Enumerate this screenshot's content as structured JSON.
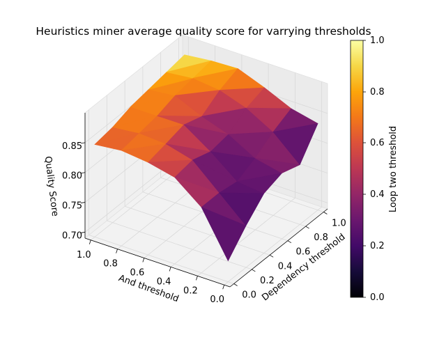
{
  "chart_data": {
    "type": "surface3d",
    "title": "Heuristics miner average quality score for varrying thresholds",
    "xlabel": "Dependency threshold",
    "ylabel": "And threshold",
    "zlabel": "Quality Score",
    "colorbar_label": "Loop two threshold",
    "colormap": "inferno",
    "x_ticks": [
      "0.0",
      "0.2",
      "0.4",
      "0.6",
      "0.8",
      "1.0"
    ],
    "y_ticks": [
      "0.0",
      "0.2",
      "0.4",
      "0.6",
      "0.8",
      "1.0"
    ],
    "z_ticks": [
      "0.70",
      "0.75",
      "0.80",
      "0.85"
    ],
    "colorbar_ticks": [
      "0.0",
      "0.2",
      "0.4",
      "0.6",
      "0.8",
      "1.0"
    ],
    "xlim": [
      0,
      1
    ],
    "ylim": [
      0,
      1
    ],
    "zlim": [
      0.69,
      0.9
    ],
    "grid": true,
    "grid_x": [
      0.0,
      0.2,
      0.4,
      0.6,
      0.8,
      1.0
    ],
    "grid_y": [
      1.0,
      0.8,
      0.6,
      0.4,
      0.2,
      0.0
    ],
    "z_values": [
      [
        0.845,
        0.85,
        0.86,
        0.865,
        0.87,
        0.875
      ],
      [
        0.85,
        0.855,
        0.86,
        0.87,
        0.875,
        0.88
      ],
      [
        0.845,
        0.852,
        0.86,
        0.85,
        0.87,
        0.882
      ],
      [
        0.835,
        0.84,
        0.83,
        0.835,
        0.855,
        0.865
      ],
      [
        0.8,
        0.8,
        0.795,
        0.81,
        0.83,
        0.845
      ],
      [
        0.725,
        0.76,
        0.79,
        0.8,
        0.79,
        0.835
      ]
    ],
    "loop_two_values": [
      [
        0.6,
        0.65,
        0.7,
        0.75,
        0.85,
        0.95
      ],
      [
        0.65,
        0.7,
        0.75,
        0.7,
        0.75,
        0.9
      ],
      [
        0.65,
        0.7,
        0.55,
        0.4,
        0.7,
        0.8
      ],
      [
        0.6,
        0.4,
        0.3,
        0.35,
        0.45,
        0.6
      ],
      [
        0.45,
        0.3,
        0.25,
        0.3,
        0.4,
        0.55
      ],
      [
        0.15,
        0.2,
        0.25,
        0.35,
        0.4,
        0.05
      ]
    ]
  }
}
